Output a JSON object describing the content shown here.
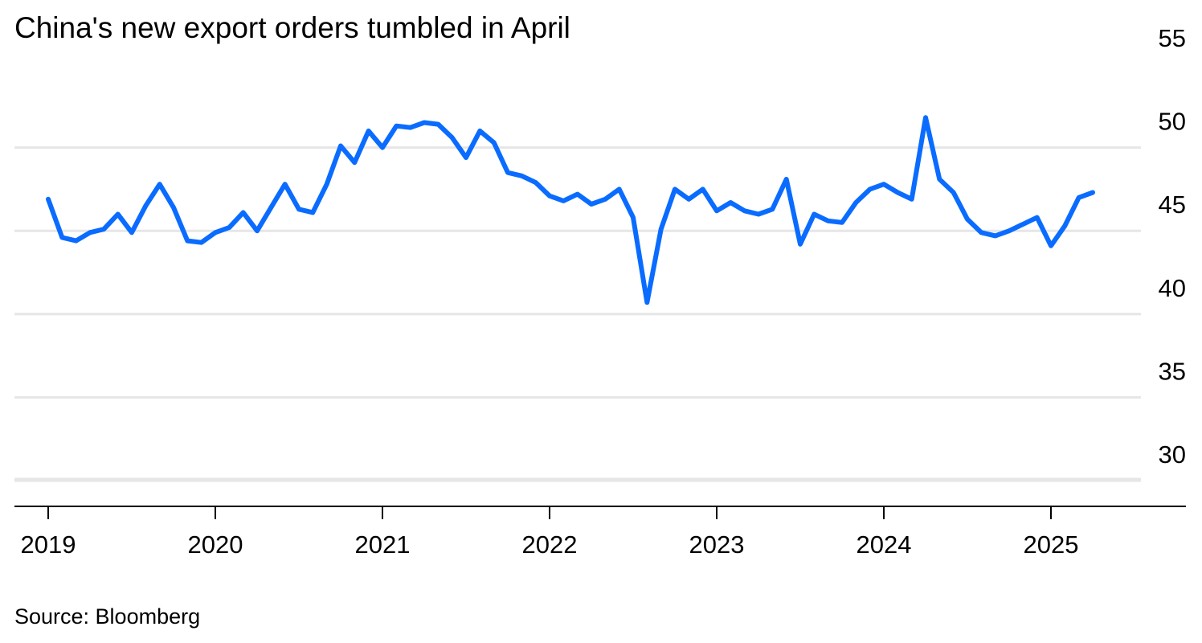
{
  "title": "China's new export orders tumbled in April",
  "source": "Source: Bloomberg",
  "colors": {
    "line": "#0a6cff",
    "grid": "#e6e6e6",
    "axis": "#000000"
  },
  "chart_data": {
    "type": "line",
    "title": "China's new export orders tumbled in April",
    "xlabel": "",
    "ylabel": "",
    "ylim": [
      28,
      55
    ],
    "yticks": [
      30,
      35,
      40,
      45,
      50,
      55
    ],
    "xticks": [
      "2019",
      "2020",
      "2021",
      "2022",
      "2023",
      "2024",
      "2025"
    ],
    "grid": true,
    "y_axis_position": "right",
    "x": [
      "2019-01",
      "2019-02",
      "2019-03",
      "2019-04",
      "2019-05",
      "2019-06",
      "2019-07",
      "2019-08",
      "2019-09",
      "2019-10",
      "2019-11",
      "2019-12",
      "2020-01",
      "2020-02",
      "2020-03",
      "2020-04",
      "2020-05",
      "2020-06",
      "2020-07",
      "2020-08",
      "2020-09",
      "2020-10",
      "2020-11",
      "2020-12",
      "2021-01",
      "2021-02",
      "2021-03",
      "2021-04",
      "2021-05",
      "2021-06",
      "2021-07",
      "2021-08",
      "2021-09",
      "2021-10",
      "2021-11",
      "2021-12",
      "2022-01",
      "2022-02",
      "2022-03",
      "2022-04",
      "2022-05",
      "2022-06",
      "2022-07",
      "2022-08",
      "2022-09",
      "2022-10",
      "2022-11",
      "2022-12",
      "2023-01",
      "2023-02",
      "2023-03",
      "2023-04",
      "2023-05",
      "2023-06",
      "2023-07",
      "2023-08",
      "2023-09",
      "2023-10",
      "2023-11",
      "2023-12",
      "2024-01",
      "2024-02",
      "2024-03",
      "2024-04",
      "2024-05",
      "2024-06",
      "2024-07",
      "2024-08",
      "2024-09",
      "2024-10",
      "2024-11",
      "2024-12",
      "2025-01",
      "2025-02",
      "2025-03",
      "2025-04"
    ],
    "series": [
      {
        "values": [
          46.9,
          44.6,
          44.4,
          44.9,
          45.1,
          46.0,
          44.9,
          46.5,
          47.8,
          46.4,
          44.4,
          44.3,
          44.9,
          45.2,
          46.1,
          45.0,
          46.4,
          47.8,
          46.3,
          46.1,
          47.8,
          50.1,
          49.1,
          51.0,
          50.0,
          51.3,
          51.2,
          51.5,
          51.4,
          50.6,
          49.4,
          51.0,
          50.3,
          48.5,
          48.3,
          47.9,
          47.1,
          46.8,
          47.2,
          46.6,
          46.9,
          47.5,
          45.8,
          40.7,
          45.1,
          47.5,
          46.9,
          47.5,
          46.2,
          46.7,
          46.2,
          46.0,
          46.3,
          48.1,
          44.2,
          46.0,
          45.6,
          45.5,
          46.7,
          47.5,
          47.8,
          47.3,
          46.9,
          51.8,
          48.1,
          47.3,
          45.7,
          44.9,
          44.7,
          45.0,
          45.4,
          45.8,
          44.1,
          45.3,
          47.0,
          47.3
        ],
        "_note_ignore": ""
      }
    ]
  }
}
